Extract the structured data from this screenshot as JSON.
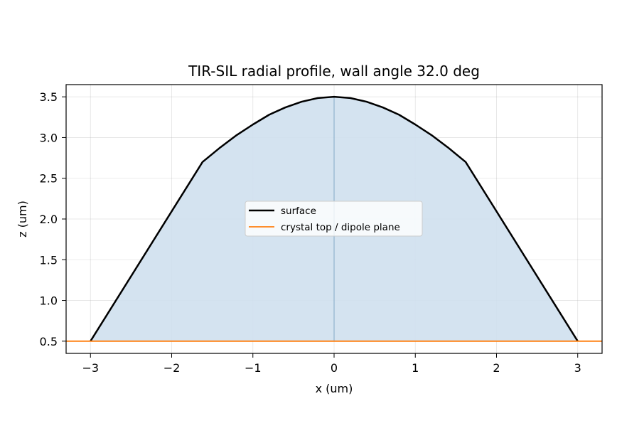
{
  "chart_data": {
    "type": "line",
    "title": "TIR-SIL radial profile, wall angle 32.0 deg",
    "xlabel": "x (um)",
    "ylabel": "z (um)",
    "xlim": [
      -3.3,
      3.3
    ],
    "ylim": [
      0.35,
      3.65
    ],
    "xticks": [
      -3,
      -2,
      -1,
      0,
      1,
      2,
      3
    ],
    "xtick_labels": [
      "−3",
      "−2",
      "−1",
      "0",
      "1",
      "2",
      "3"
    ],
    "yticks": [
      0.5,
      1.0,
      1.5,
      2.0,
      2.5,
      3.0,
      3.5
    ],
    "ytick_labels": [
      "0.5",
      "1.0",
      "1.5",
      "2.0",
      "2.5",
      "3.0",
      "3.5"
    ],
    "grid": true,
    "legend_position": "center",
    "series": [
      {
        "name": "surface",
        "color": "#000000",
        "fill_color": "#cfe0ee",
        "x": [
          -3.0,
          -1.62,
          -1.4,
          -1.2,
          -1.0,
          -0.8,
          -0.6,
          -0.4,
          -0.2,
          0.0,
          0.2,
          0.4,
          0.6,
          0.8,
          1.0,
          1.2,
          1.4,
          1.62,
          3.0
        ],
        "y": [
          0.5,
          2.7,
          2.88,
          3.03,
          3.16,
          3.28,
          3.37,
          3.44,
          3.485,
          3.5,
          3.485,
          3.44,
          3.37,
          3.28,
          3.16,
          3.03,
          2.88,
          2.7,
          0.5
        ]
      },
      {
        "name": "crystal top / dipole plane",
        "color": "#ff7f0e",
        "x": [
          -3.3,
          3.3
        ],
        "y": [
          0.5,
          0.5
        ]
      }
    ],
    "axis_line": {
      "x": 0,
      "color": "#9dbcd4"
    }
  }
}
